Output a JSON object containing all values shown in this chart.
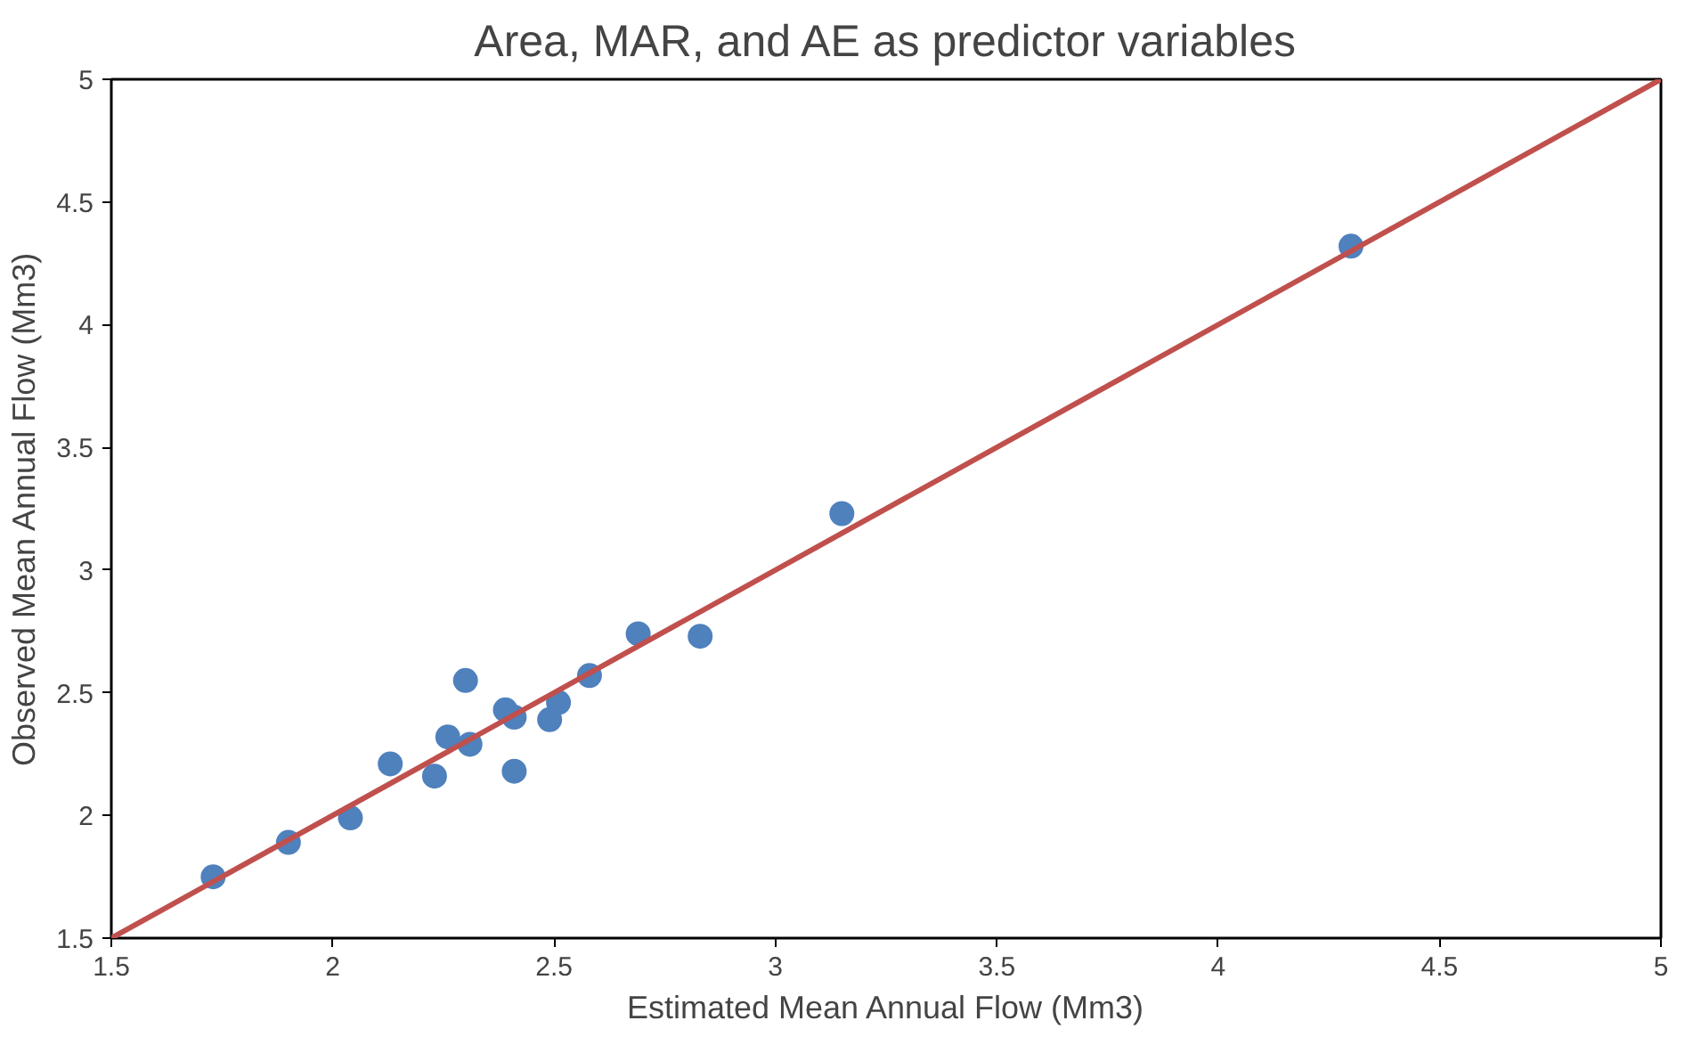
{
  "chart_data": {
    "type": "scatter",
    "title": "Area, MAR, and AE as predictor variables",
    "xlabel": "Estimated Mean Annual Flow (Mm3)",
    "ylabel": "Observed Mean Annual Flow (Mm3)",
    "xlim": [
      1.5,
      5
    ],
    "ylim": [
      1.5,
      5
    ],
    "xticks": [
      1.5,
      2,
      2.5,
      3,
      3.5,
      4,
      4.5,
      5
    ],
    "yticks": [
      1.5,
      2,
      2.5,
      3,
      3.5,
      4,
      4.5,
      5
    ],
    "grid": false,
    "series": [
      {
        "marker": "circle",
        "color": "#4f81bd",
        "x": [
          1.73,
          1.9,
          2.04,
          2.13,
          2.23,
          2.26,
          2.3,
          2.31,
          2.39,
          2.41,
          2.41,
          2.49,
          2.51,
          2.58,
          2.69,
          2.83,
          3.15,
          4.3
        ],
        "values": [
          1.75,
          1.89,
          1.99,
          2.21,
          2.16,
          2.32,
          2.55,
          2.29,
          2.43,
          2.18,
          2.4,
          2.39,
          2.46,
          2.57,
          2.74,
          2.73,
          3.23,
          4.32
        ]
      },
      {
        "type": "line",
        "marker": "none",
        "color": "#c0504d",
        "line_style": "solid",
        "x": [
          1.5,
          5
        ],
        "values": [
          1.5,
          5
        ]
      }
    ]
  }
}
